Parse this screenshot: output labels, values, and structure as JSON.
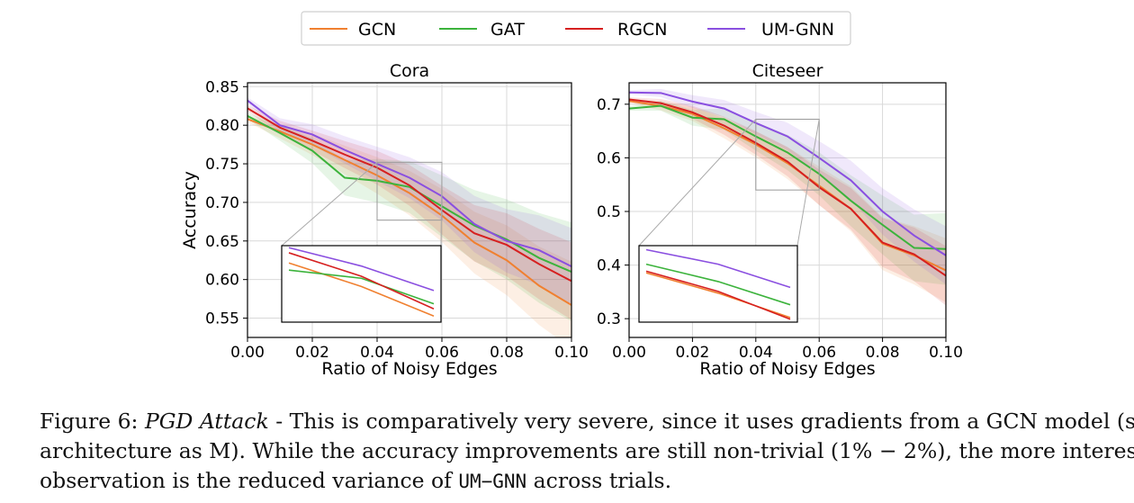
{
  "legend": {
    "entries": [
      {
        "name": "GCN",
        "color": "#f08030"
      },
      {
        "name": "GAT",
        "color": "#3cb33c"
      },
      {
        "name": "RGCN",
        "color": "#d62020"
      },
      {
        "name": "UM-GNN",
        "color": "#8a4fe0"
      }
    ]
  },
  "chart_data": [
    {
      "type": "line",
      "title": "Cora",
      "xlabel": "Ratio of Noisy Edges",
      "ylabel": "Accuracy",
      "xlim": [
        0.0,
        0.1
      ],
      "ylim": [
        0.525,
        0.855
      ],
      "xticks": [
        "0.00",
        "0.02",
        "0.04",
        "0.06",
        "0.08",
        "0.10"
      ],
      "yticks": [
        "0.55",
        "0.60",
        "0.65",
        "0.70",
        "0.75",
        "0.80",
        "0.85"
      ],
      "grid": true,
      "x": [
        0.0,
        0.01,
        0.02,
        0.03,
        0.04,
        0.05,
        0.06,
        0.07,
        0.08,
        0.09,
        0.1
      ],
      "series": [
        {
          "name": "GCN",
          "color": "#f08030",
          "values": [
            0.808,
            0.792,
            0.775,
            0.755,
            0.735,
            0.712,
            0.683,
            0.648,
            0.625,
            0.592,
            0.567
          ]
        },
        {
          "name": "GAT",
          "color": "#3cb33c",
          "values": [
            0.812,
            0.79,
            0.767,
            0.732,
            0.728,
            0.72,
            0.695,
            0.67,
            0.652,
            0.628,
            0.61
          ]
        },
        {
          "name": "RGCN",
          "color": "#d62020",
          "values": [
            0.822,
            0.797,
            0.78,
            0.762,
            0.745,
            0.722,
            0.69,
            0.66,
            0.645,
            0.62,
            0.598
          ]
        },
        {
          "name": "UM-GNN",
          "color": "#8a4fe0",
          "values": [
            0.832,
            0.8,
            0.788,
            0.768,
            0.75,
            0.732,
            0.708,
            0.672,
            0.65,
            0.638,
            0.617
          ]
        }
      ]
    },
    {
      "type": "line",
      "title": "Citeseer",
      "xlabel": "Ratio of Noisy Edges",
      "ylabel": "",
      "xlim": [
        0.0,
        0.1
      ],
      "ylim": [
        0.265,
        0.74
      ],
      "xticks": [
        "0.00",
        "0.02",
        "0.04",
        "0.06",
        "0.08",
        "0.10"
      ],
      "yticks": [
        "0.3",
        "0.4",
        "0.5",
        "0.6",
        "0.7"
      ],
      "grid": true,
      "x": [
        0.0,
        0.01,
        0.02,
        0.03,
        0.04,
        0.05,
        0.06,
        0.07,
        0.08,
        0.09,
        0.1
      ],
      "series": [
        {
          "name": "GCN",
          "color": "#f08030",
          "values": [
            0.706,
            0.697,
            0.682,
            0.655,
            0.625,
            0.59,
            0.548,
            0.505,
            0.44,
            0.418,
            0.39
          ]
        },
        {
          "name": "GAT",
          "color": "#3cb33c",
          "values": [
            0.692,
            0.697,
            0.675,
            0.672,
            0.64,
            0.61,
            0.57,
            0.52,
            0.475,
            0.432,
            0.43
          ]
        },
        {
          "name": "RGCN",
          "color": "#d62020",
          "values": [
            0.709,
            0.702,
            0.685,
            0.66,
            0.628,
            0.593,
            0.545,
            0.505,
            0.442,
            0.42,
            0.38
          ]
        },
        {
          "name": "UM-GNN",
          "color": "#8a4fe0",
          "values": [
            0.722,
            0.721,
            0.705,
            0.692,
            0.665,
            0.64,
            0.6,
            0.558,
            0.5,
            0.455,
            0.418
          ]
        }
      ]
    }
  ],
  "caption": {
    "line1_prefix": "Figure 6: ",
    "line1_italic": "PGD Attack",
    "line1_rest": " - This is comparatively very severe, since it uses gradients from a GCN model (same",
    "line2": "architecture as M). While the accuracy improvements are still non-trivial (1% − 2%), the more interesting",
    "line3_prefix": "observation is the reduced variance of ",
    "line3_code": "UM−GNN",
    "line3_suffix": " across trials."
  }
}
